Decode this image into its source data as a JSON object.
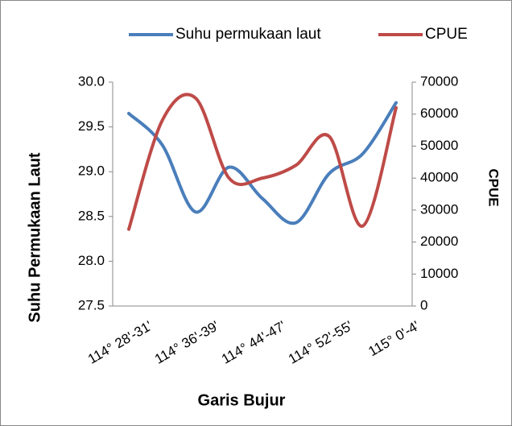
{
  "chart_data": {
    "type": "line",
    "ylabel": "Suhu Permukaan Laut",
    "y2label": "CPUE",
    "xlabel": "Garis Bujur",
    "categories": [
      "114° 28'-31'",
      null,
      "114° 36'-39'",
      null,
      "114° 44'-47'",
      null,
      "114° 52'-55'",
      null,
      "115° 0'-4'"
    ],
    "series": [
      {
        "name": "Suhu permukaan laut",
        "color": "#4a7ebb",
        "values": [
          29.65,
          29.3,
          28.55,
          29.05,
          28.7,
          28.43,
          28.98,
          29.2,
          29.77
        ]
      },
      {
        "name": "CPUE",
        "color": "#be4b48",
        "axis": "y2",
        "values": [
          24000,
          58000,
          65000,
          40000,
          40000,
          44000,
          53000,
          25000,
          62000
        ]
      }
    ],
    "ylim": [
      27.5,
      30.0
    ],
    "yticks": [
      27.5,
      {
        "value": 28,
        "label": "28.0"
      },
      28.5,
      {
        "value": 29,
        "label": "29.0"
      },
      29.5,
      {
        "value": 30,
        "label": "30.0"
      }
    ],
    "y2lim": [
      0,
      70000
    ],
    "y2ticks": [
      0,
      10000,
      20000,
      30000,
      40000,
      50000,
      60000,
      70000
    ],
    "legend": "top",
    "smooth": true
  }
}
